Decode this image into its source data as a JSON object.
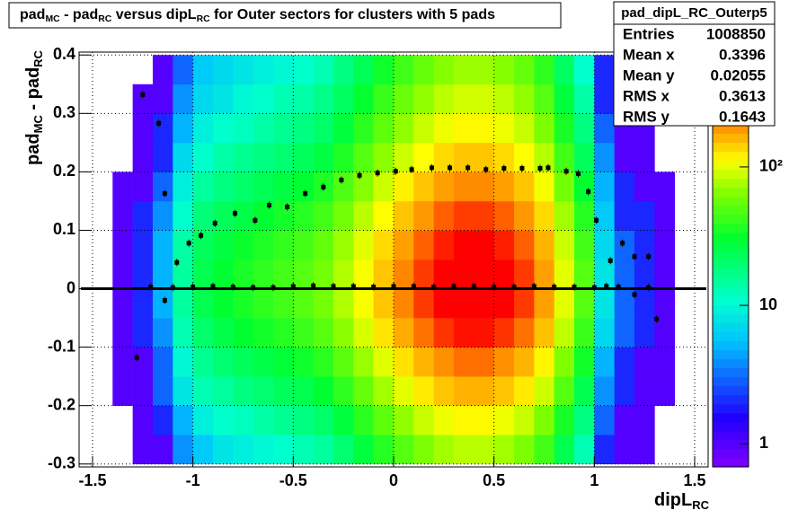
{
  "chart_data": {
    "type": "heatmap",
    "title_parts": [
      {
        "text": "pad",
        "sub": "MC"
      },
      {
        "text": " - pad",
        "sub": "RC"
      },
      {
        "text": " versus dipL",
        "sub": "RC"
      },
      {
        "text": " for Outer sectors for clusters with 5 pads"
      }
    ],
    "ylabel_parts": [
      {
        "text": "pad",
        "sub": "MC"
      },
      {
        "text": " - pad",
        "sub": "RC"
      }
    ],
    "xlabel_parts": [
      {
        "text": "dipL",
        "sub": "RC"
      }
    ],
    "xlim": [
      -1.567,
      1.567
    ],
    "ylim": [
      -0.305,
      0.405
    ],
    "xticks": [
      -1.5,
      -1,
      -0.5,
      0,
      0.5,
      1,
      1.5
    ],
    "yticks": [
      -0.3,
      -0.2,
      -0.1,
      0,
      0.1,
      0.2,
      0.3,
      0.4
    ],
    "grid": true,
    "zlog": true,
    "zlim": [
      0.68,
      676
    ],
    "zticks": [
      1,
      10,
      {
        "value": 100,
        "label": "10²"
      }
    ],
    "colorscale": [
      [
        0,
        "#8000ff"
      ],
      [
        0.12,
        "#2000ff"
      ],
      [
        0.3,
        "#00c0ff"
      ],
      [
        0.4,
        "#00ffd0"
      ],
      [
        0.55,
        "#00ff30"
      ],
      [
        0.66,
        "#80ff00"
      ],
      [
        0.74,
        "#ffff00"
      ],
      [
        0.82,
        "#ff9000"
      ],
      [
        0.88,
        "#ff0000"
      ],
      [
        1,
        "#ff0000"
      ]
    ],
    "xbins": [
      -1.4,
      -1.3,
      -1.2,
      -1.1,
      -1,
      -0.9,
      -0.8,
      -0.7,
      -0.6,
      -0.5,
      -0.4,
      -0.3,
      -0.2,
      -0.1,
      0,
      0.1,
      0.2,
      0.3,
      0.4,
      0.5,
      0.6,
      0.7,
      0.8,
      0.9,
      1,
      1.1,
      1.2,
      1.3,
      1.4
    ],
    "ybins": [
      -0.3,
      -0.25,
      -0.2,
      -0.15,
      -0.1,
      -0.05,
      0,
      0.05,
      0.1,
      0.15,
      0.2,
      0.25,
      0.3,
      0.35,
      0.4
    ],
    "counts": [
      [
        0,
        0,
        1,
        1,
        1,
        1,
        1,
        1,
        1,
        1,
        0,
        0,
        0,
        0
      ],
      [
        1,
        1,
        1,
        1,
        2,
        2,
        2,
        2,
        2,
        1,
        1,
        1,
        1,
        0
      ],
      [
        1,
        2,
        3,
        3,
        4,
        5,
        5,
        5,
        4,
        3,
        2,
        2,
        1,
        1
      ],
      [
        4,
        5,
        8,
        10,
        13,
        15,
        15,
        14,
        11,
        9,
        7,
        5,
        4,
        3
      ],
      [
        6,
        9,
        13,
        16,
        21,
        25,
        25,
        23,
        19,
        15,
        11,
        9,
        7,
        6
      ],
      [
        8,
        11,
        15,
        20,
        26,
        30,
        30,
        27,
        23,
        18,
        14,
        11,
        8,
        7
      ],
      [
        9,
        12,
        18,
        23,
        30,
        35,
        35,
        32,
        26,
        21,
        16,
        12,
        10,
        8
      ],
      [
        10,
        14,
        20,
        26,
        34,
        40,
        40,
        36,
        30,
        24,
        18,
        14,
        11,
        9
      ],
      [
        11,
        16,
        23,
        29,
        38,
        45,
        45,
        41,
        34,
        27,
        20,
        16,
        13,
        10
      ],
      [
        13,
        18,
        25,
        33,
        43,
        50,
        50,
        45,
        38,
        30,
        23,
        18,
        14,
        11
      ],
      [
        15,
        21,
        30,
        39,
        51,
        60,
        60,
        54,
        45,
        36,
        27,
        21,
        17,
        13
      ],
      [
        20,
        28,
        40,
        52,
        68,
        80,
        80,
        72,
        60,
        48,
        36,
        28,
        22,
        18
      ],
      [
        28,
        39,
        55,
        72,
        94,
        110,
        110,
        99,
        83,
        66,
        50,
        39,
        31,
        24
      ],
      [
        38,
        53,
        75,
        98,
        128,
        150,
        150,
        135,
        113,
        90,
        68,
        53,
        42,
        33
      ],
      [
        50,
        70,
        100,
        130,
        170,
        200,
        200,
        180,
        150,
        120,
        90,
        70,
        56,
        44
      ],
      [
        63,
        88,
        125,
        163,
        213,
        250,
        250,
        225,
        188,
        150,
        113,
        88,
        70,
        55
      ],
      [
        75,
        105,
        150,
        195,
        255,
        300,
        300,
        270,
        225,
        180,
        135,
        105,
        84,
        66
      ],
      [
        83,
        116,
        165,
        215,
        281,
        330,
        330,
        297,
        248,
        198,
        149,
        116,
        92,
        73
      ],
      [
        83,
        116,
        165,
        215,
        281,
        330,
        330,
        297,
        248,
        198,
        149,
        116,
        92,
        73
      ],
      [
        75,
        105,
        150,
        195,
        255,
        300,
        300,
        270,
        225,
        180,
        135,
        105,
        84,
        66
      ],
      [
        63,
        88,
        125,
        163,
        213,
        250,
        250,
        225,
        188,
        150,
        113,
        88,
        70,
        55
      ],
      [
        45,
        63,
        90,
        117,
        153,
        180,
        180,
        162,
        135,
        108,
        81,
        63,
        50,
        40
      ],
      [
        25,
        35,
        50,
        65,
        85,
        100,
        100,
        90,
        75,
        60,
        45,
        35,
        28,
        22
      ],
      [
        13,
        18,
        25,
        33,
        43,
        50,
        50,
        45,
        38,
        30,
        23,
        18,
        14,
        11
      ],
      [
        2,
        3,
        4,
        5,
        7,
        8,
        8,
        7,
        6,
        5,
        4,
        3,
        2,
        2
      ],
      [
        1,
        1,
        2,
        2,
        3,
        3,
        3,
        3,
        2,
        2,
        1,
        1,
        1,
        1
      ],
      [
        1,
        1,
        1,
        1,
        2,
        2,
        2,
        2,
        2,
        1,
        1,
        1,
        1,
        0
      ],
      [
        0,
        0,
        1,
        1,
        1,
        1,
        1,
        1,
        1,
        1,
        0,
        0,
        0,
        0
      ]
    ],
    "series": [
      {
        "color": "#000000",
        "x": [
          -1.25,
          -1.17,
          -1.14,
          -1.08,
          -1.02,
          -0.96,
          -0.89,
          -0.79,
          -0.69,
          -0.62,
          -0.53,
          -0.44,
          -0.35,
          -0.26,
          -0.17,
          -0.08,
          0.01,
          0.09,
          0.19,
          0.28,
          0.37,
          0.46,
          0.55,
          0.64,
          0.73,
          0.77,
          0.86,
          0.92,
          0.97,
          1.01,
          1.08,
          1.14,
          1.2,
          1.27,
          1.31
        ],
        "values": [
          0.332,
          0.283,
          0.163,
          0.045,
          0.078,
          0.091,
          0.112,
          0.129,
          0.117,
          0.143,
          0.14,
          0.163,
          0.174,
          0.186,
          0.194,
          0.198,
          0.201,
          0.204,
          0.207,
          0.207,
          0.207,
          0.204,
          0.206,
          0.206,
          0.206,
          0.207,
          0.201,
          0.197,
          0.166,
          0.117,
          0.048,
          0.078,
          0.055,
          0.055,
          -0.052
        ]
      },
      {
        "color": "#000000",
        "x": [
          -1.28,
          -1.21,
          -1.14,
          -1.1,
          -1,
          -0.9,
          -0.8,
          -0.7,
          -0.6,
          -0.5,
          -0.4,
          -0.3,
          -0.2,
          -0.1,
          0,
          0.1,
          0.2,
          0.3,
          0.4,
          0.5,
          0.6,
          0.7,
          0.8,
          0.9,
          1,
          1.06,
          1.12,
          1.2,
          1.27
        ],
        "values": [
          -0.118,
          0.003,
          -0.02,
          0.002,
          0.003,
          0.004,
          0.003,
          0.002,
          0.002,
          0.004,
          0.005,
          0.004,
          0.004,
          0.003,
          0.004,
          0.004,
          0.003,
          0.004,
          0.004,
          0.003,
          0.003,
          0.004,
          0.003,
          0.003,
          0.002,
          0.004,
          0.003,
          -0.01,
          0.002
        ]
      }
    ],
    "hline": 0,
    "stats": {
      "name": "pad_dipL_RC_Outerp5",
      "rows": [
        [
          "Entries",
          1008850
        ],
        [
          "Mean x",
          0.3396
        ],
        [
          "Mean y",
          0.02055
        ],
        [
          "RMS x",
          0.3613
        ],
        [
          "RMS y",
          0.1643
        ]
      ]
    }
  }
}
